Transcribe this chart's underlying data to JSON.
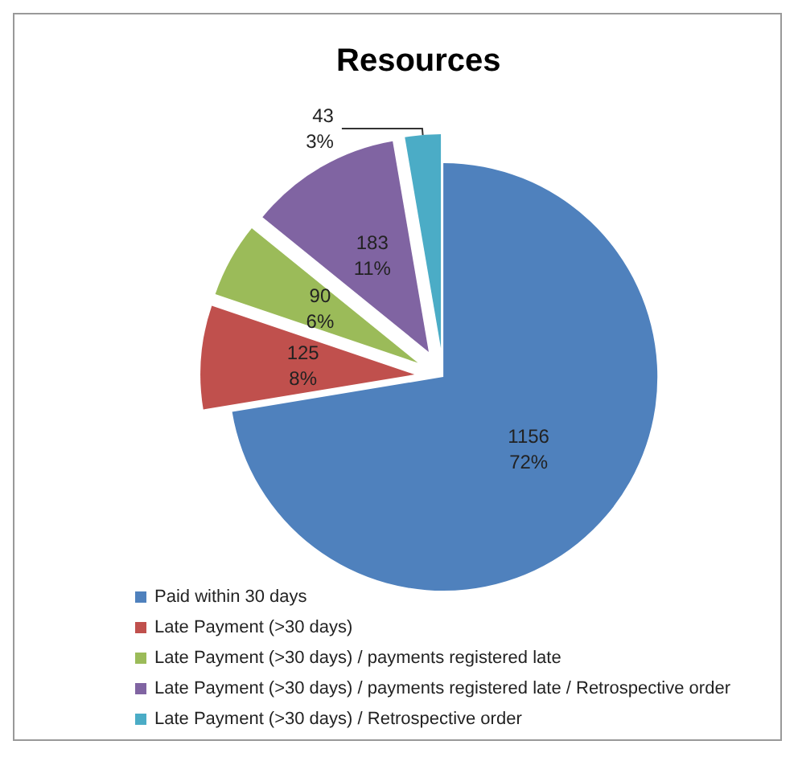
{
  "chart_data": {
    "type": "pie",
    "title": "Resources",
    "categories": [
      "Paid within 30 days",
      "Late Payment (>30 days)",
      "Late Payment (>30 days) / payments registered late",
      "Late Payment (>30 days) / payments registered late / Retrospective order",
      "Late Payment (>30 days) / Retrospective order"
    ],
    "values": [
      1156,
      125,
      90,
      183,
      43
    ],
    "colors": [
      "#4f81bd",
      "#c0504d",
      "#9bbb59",
      "#8064a2",
      "#4bacc6"
    ],
    "value_labels": [
      "1156\n72%",
      "125\n8%",
      "90\n6%",
      "183\n11%",
      "43\n3%"
    ],
    "legend": "bottom left"
  }
}
